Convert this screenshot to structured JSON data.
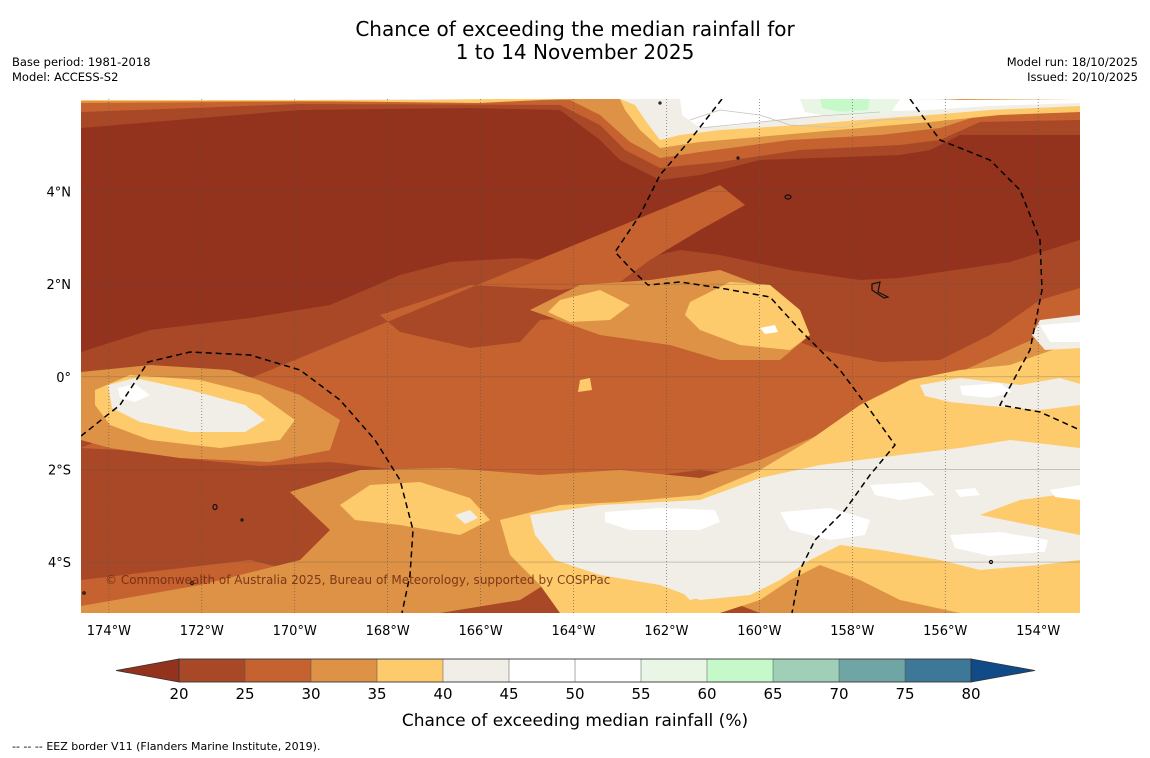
{
  "title": {
    "line1": "Chance of exceeding the median rainfall for",
    "line2": "1 to 14 November 2025"
  },
  "info_left": {
    "base_period": "Base period: 1981-2018",
    "model": "Model: ACCESS-S2"
  },
  "info_right": {
    "model_run": "Model run: 18/10/2025",
    "issued": "Issued: 20/10/2025"
  },
  "map": {
    "lon_labels": [
      "174°W",
      "172°W",
      "170°W",
      "168°W",
      "166°W",
      "164°W",
      "162°W",
      "160°W",
      "158°W",
      "156°W",
      "154°W"
    ],
    "lat_labels": [
      "4°N",
      "2°N",
      "0°",
      "2°S",
      "4°S"
    ],
    "lon_range": [
      -174.6,
      -153.1
    ],
    "lat_range": [
      -5.1,
      6.0
    ],
    "copyright": "© Commonwealth of Australia 2025, Bureau of Meteorology, supported by COSPPac"
  },
  "colorbar": {
    "label": "Chance of exceeding median rainfall (%)",
    "ticks": [
      "20",
      "25",
      "30",
      "35",
      "40",
      "45",
      "50",
      "55",
      "60",
      "65",
      "70",
      "75",
      "80"
    ],
    "colors": [
      "#93331e",
      "#a94826",
      "#c5622f",
      "#de9245",
      "#fdcb6b",
      "#f1ede7",
      "#ffffff",
      "#ffffff",
      "#e9f6e6",
      "#c6f9c9",
      "#9fcfb7",
      "#6fa5a4",
      "#3e7899",
      "#104b88"
    ]
  },
  "footnote": {
    "symbol": "-- -- --",
    "text": "EEZ border V11 (Flanders Marine Institute, 2019)."
  }
}
